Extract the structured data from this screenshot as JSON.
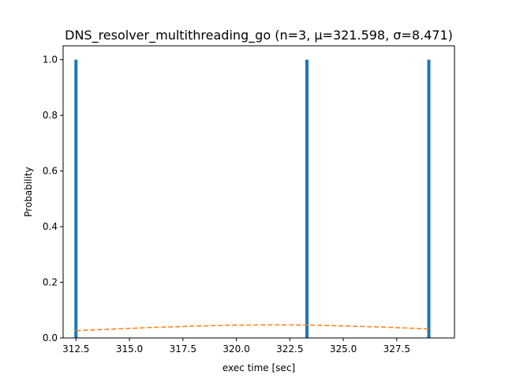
{
  "chart_data": {
    "type": "bar",
    "title": "DNS_resolver_multithreading_go (n=3, μ=321.598, σ=8.471)",
    "xlabel": "exec time [sec]",
    "ylabel": "Probability",
    "xlim": [
      311.9,
      330.2
    ],
    "ylim": [
      0.0,
      1.05
    ],
    "x_ticks": [
      "312.5",
      "315.0",
      "317.5",
      "320.0",
      "322.5",
      "325.0",
      "327.5"
    ],
    "x_tick_values": [
      312.5,
      315.0,
      317.5,
      320.0,
      322.5,
      325.0,
      327.5
    ],
    "y_ticks": [
      "0.0",
      "0.2",
      "0.4",
      "0.6",
      "0.8",
      "1.0"
    ],
    "y_tick_values": [
      0.0,
      0.2,
      0.4,
      0.6,
      0.8,
      1.0
    ],
    "series": [
      {
        "type": "bar",
        "x": [
          312.5,
          323.3,
          329.0
        ],
        "values": [
          1.0,
          1.0,
          1.0
        ],
        "color": "#1f77b4"
      },
      {
        "type": "line",
        "style": "dashed",
        "color": "#ff7f0e",
        "x": [
          312.5,
          314.0,
          316.0,
          318.0,
          320.0,
          321.6,
          323.0,
          325.0,
          327.0,
          329.0
        ],
        "values": [
          0.0264,
          0.0313,
          0.0374,
          0.0425,
          0.0461,
          0.0471,
          0.0465,
          0.0435,
          0.0385,
          0.032
        ]
      }
    ],
    "grid": false,
    "legend": "none"
  }
}
